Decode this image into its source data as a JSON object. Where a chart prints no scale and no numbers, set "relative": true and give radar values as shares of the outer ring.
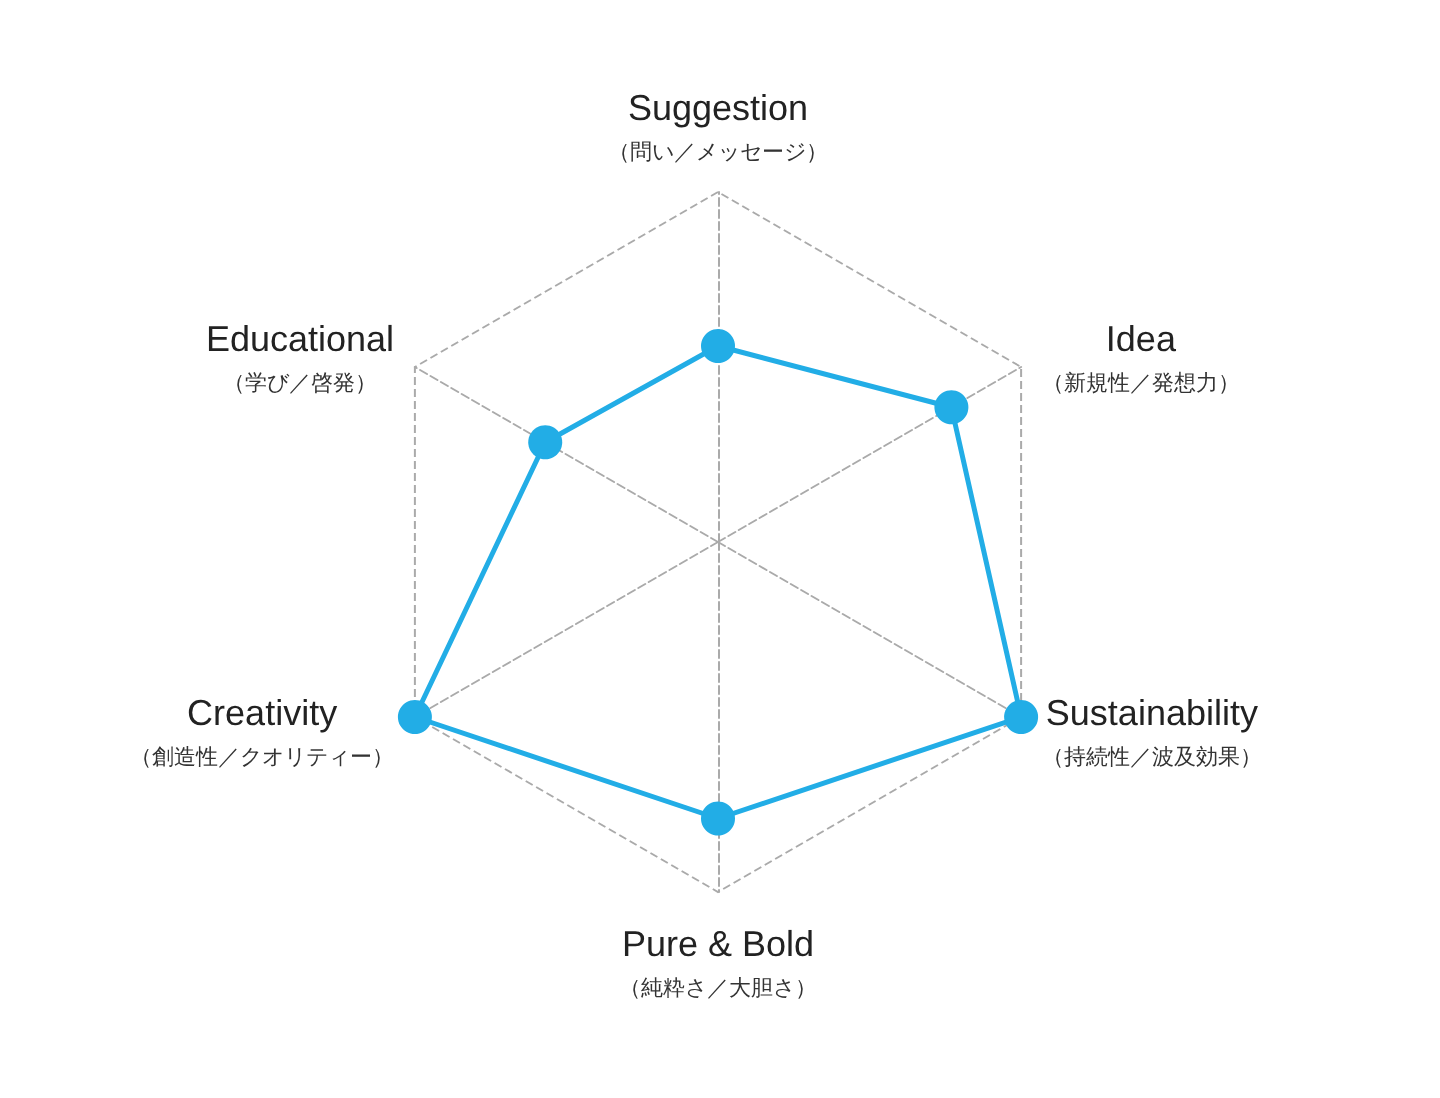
{
  "chart_data": {
    "type": "radar",
    "relative": true,
    "categories": [
      "Suggestion\n（問い／メッセージ）",
      "Idea\n（新規性／発想力）",
      "Sustainability\n（持続性／波及効果）",
      "Pure & Bold\n（純粋さ／大胆さ）",
      "Creativity\n（創造性／クオリティー）",
      "Educational\n（学び／啓発）"
    ],
    "series": [
      {
        "color": "#22ade6",
        "values": [
          0.56,
          0.77,
          1.0,
          0.79,
          1.0,
          0.57
        ]
      }
    ],
    "marker": "circle",
    "line_style": "solid",
    "grid": true
  }
}
